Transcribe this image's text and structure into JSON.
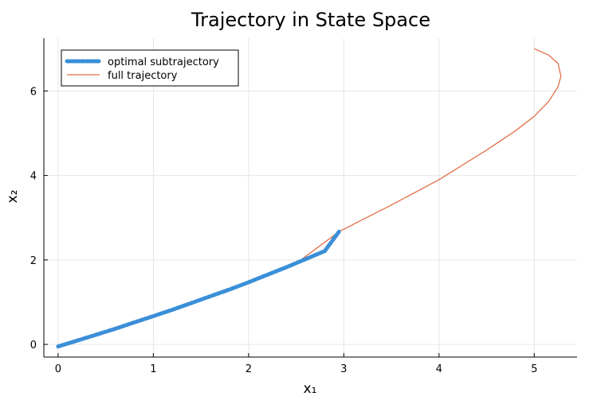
{
  "chart_data": {
    "type": "line",
    "title": "Trajectory in State Space",
    "xlabel": "x₁",
    "ylabel": "x₂",
    "xlim": [
      -0.15,
      5.45
    ],
    "ylim": [
      -0.3,
      7.25
    ],
    "xticks": [
      0,
      1,
      2,
      3,
      4,
      5
    ],
    "yticks": [
      0,
      2,
      4,
      6
    ],
    "grid": true,
    "legend_position": "top-left",
    "series": [
      {
        "name": "optimal subtrajectory",
        "color": "#3a8fd8",
        "style": "thick-dotted",
        "x": [
          0.0,
          0.2,
          0.4,
          0.6,
          0.8,
          1.0,
          1.2,
          1.4,
          1.6,
          1.8,
          2.0,
          2.2,
          2.4,
          2.6,
          2.8,
          2.95
        ],
        "y": [
          -0.05,
          0.09,
          0.23,
          0.37,
          0.52,
          0.67,
          0.82,
          0.98,
          1.14,
          1.3,
          1.47,
          1.65,
          1.83,
          2.02,
          2.21,
          2.67
        ]
      },
      {
        "name": "full trajectory",
        "color": "#e26f46",
        "style": "line",
        "x": [
          0.0,
          0.5,
          1.0,
          1.5,
          2.0,
          2.5,
          2.95,
          3.5,
          4.0,
          4.5,
          4.8,
          5.0,
          5.15,
          5.25,
          5.28,
          5.25,
          5.15,
          5.0
        ],
        "y": [
          -0.05,
          0.3,
          0.67,
          1.06,
          1.47,
          1.92,
          2.67,
          3.3,
          3.9,
          4.6,
          5.05,
          5.4,
          5.75,
          6.1,
          6.35,
          6.65,
          6.85,
          7.0
        ]
      }
    ]
  }
}
